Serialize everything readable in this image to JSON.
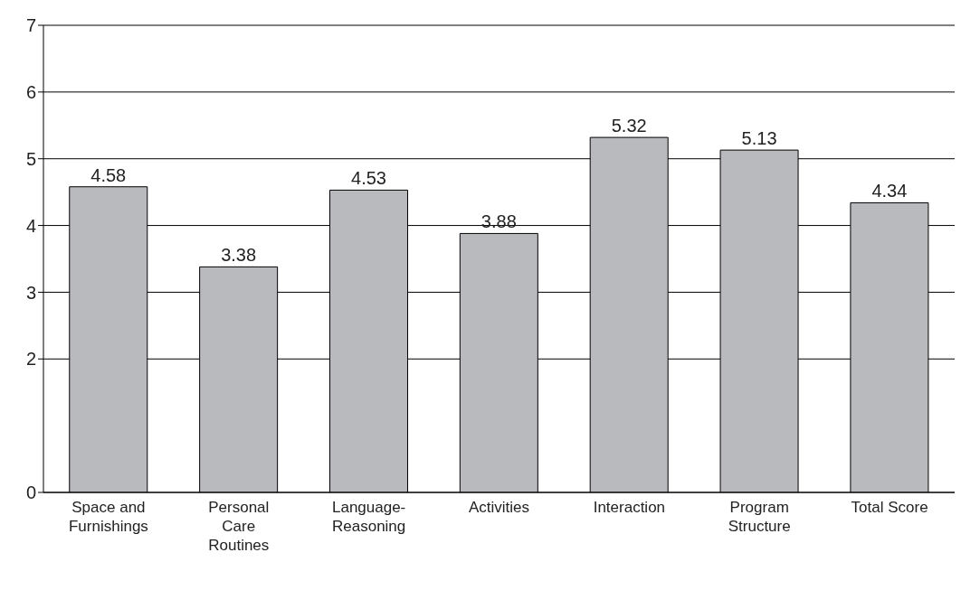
{
  "chart_data": {
    "type": "bar",
    "categories": [
      "Space and Furnishings",
      "Personal Care Routines",
      "Language-Reasoning",
      "Activities",
      "Interaction",
      "Program Structure",
      "Total Score"
    ],
    "values": [
      4.58,
      3.38,
      4.53,
      3.88,
      5.32,
      5.13,
      4.34
    ],
    "color": "#b9babd",
    "ylim": [
      0,
      7
    ],
    "yticks": [
      0,
      2,
      3,
      4,
      5,
      6,
      7
    ],
    "grid": "y",
    "data_labels": true
  }
}
